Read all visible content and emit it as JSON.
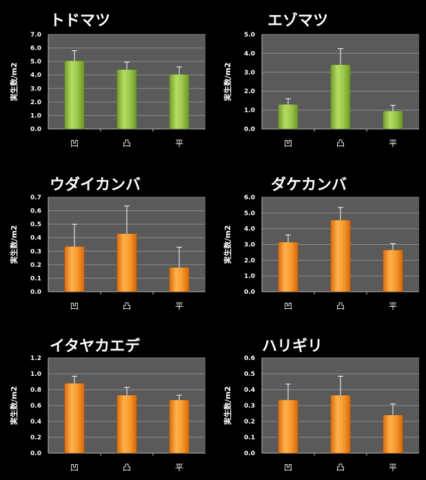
{
  "colors": {
    "background": "#000000",
    "plot_area": "#5a5a5a",
    "grid": "#8c8c8c",
    "green_bar": "#8dbb3c",
    "orange_bar": "#f28a1c",
    "error_bar": "#ffffff"
  },
  "chart_data": [
    {
      "type": "bar",
      "title": "トドマツ",
      "ylabel": "実生数/m2",
      "categories": [
        "凹",
        "凸",
        "平"
      ],
      "values": [
        5.05,
        4.4,
        4.05
      ],
      "errors": [
        0.75,
        0.55,
        0.55
      ],
      "ylim": [
        0,
        7.0
      ],
      "yticks": [
        "0.0",
        "1.0",
        "2.0",
        "3.0",
        "4.0",
        "5.0",
        "6.0",
        "7.0"
      ],
      "color": "green",
      "grid": true
    },
    {
      "type": "bar",
      "title": "エゾマツ",
      "ylabel": "実生数/m2",
      "categories": [
        "凹",
        "凸",
        "平"
      ],
      "values": [
        1.3,
        3.4,
        0.95
      ],
      "errors": [
        0.3,
        0.85,
        0.3
      ],
      "ylim": [
        0,
        5.0
      ],
      "yticks": [
        "0.0",
        "1.0",
        "2.0",
        "3.0",
        "4.0",
        "5.0"
      ],
      "color": "green",
      "grid": true
    },
    {
      "type": "bar",
      "title": "ウダイカンバ",
      "ylabel": "実生数/m2",
      "categories": [
        "凹",
        "凸",
        "平"
      ],
      "values": [
        0.335,
        0.43,
        0.18
      ],
      "errors": [
        0.165,
        0.205,
        0.15
      ],
      "ylim": [
        0,
        0.7
      ],
      "yticks": [
        "0.0",
        "0.1",
        "0.2",
        "0.3",
        "0.4",
        "0.5",
        "0.6",
        "0.7"
      ],
      "color": "orange",
      "grid": true
    },
    {
      "type": "bar",
      "title": "ダケカンバ",
      "ylabel": "実生数/m2",
      "categories": [
        "凹",
        "凸",
        "平"
      ],
      "values": [
        3.15,
        4.55,
        2.65
      ],
      "errors": [
        0.45,
        0.8,
        0.4
      ],
      "ylim": [
        0,
        6.0
      ],
      "yticks": [
        "0.0",
        "1.0",
        "2.0",
        "3.0",
        "4.0",
        "5.0",
        "6.0"
      ],
      "color": "orange",
      "grid": true
    },
    {
      "type": "bar",
      "title": "イタヤカエデ",
      "ylabel": "実生数/m2",
      "categories": [
        "凹",
        "凸",
        "平"
      ],
      "values": [
        0.88,
        0.73,
        0.67
      ],
      "errors": [
        0.09,
        0.1,
        0.06
      ],
      "ylim": [
        0,
        1.2
      ],
      "yticks": [
        "0.0",
        "0.2",
        "0.4",
        "0.6",
        "0.8",
        "1.0",
        "1.2"
      ],
      "color": "orange",
      "grid": true
    },
    {
      "type": "bar",
      "title": "ハリギリ",
      "ylabel": "実生数/m2",
      "categories": [
        "凹",
        "凸",
        "平"
      ],
      "values": [
        0.335,
        0.365,
        0.24
      ],
      "errors": [
        0.1,
        0.12,
        0.07
      ],
      "ylim": [
        0,
        0.6
      ],
      "yticks": [
        "0.0",
        "0.1",
        "0.2",
        "0.3",
        "0.4",
        "0.5",
        "0.6"
      ],
      "color": "orange",
      "grid": true
    }
  ]
}
